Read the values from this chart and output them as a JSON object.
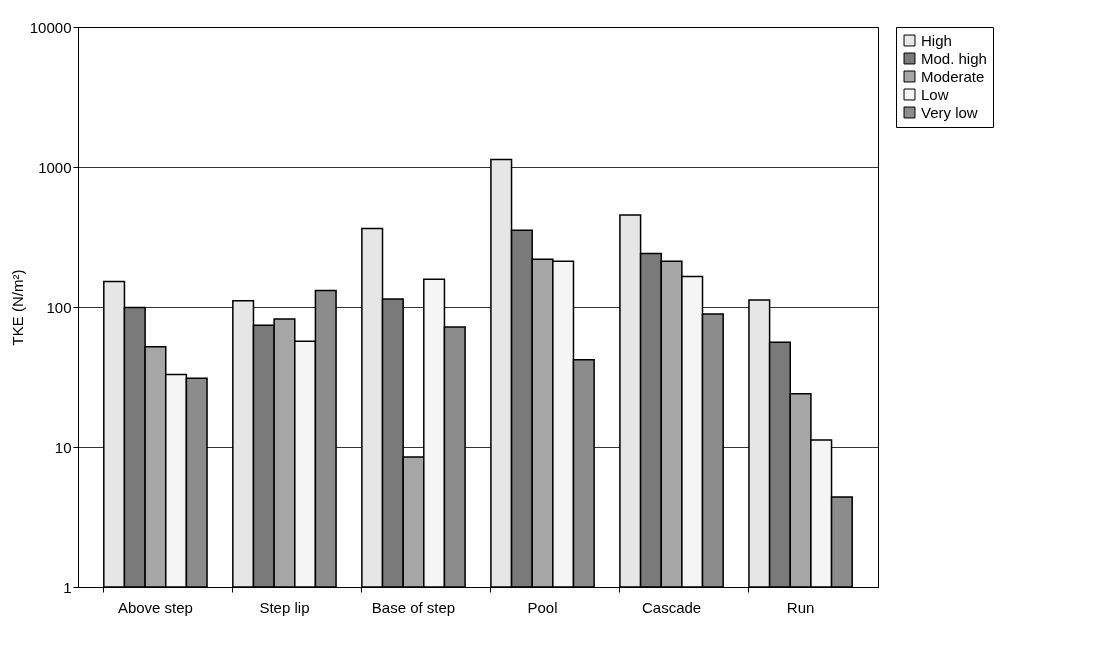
{
  "chart_data": {
    "type": "bar",
    "ylabel": "TKE (N/m²)",
    "categories": [
      "Above step",
      "Step lip",
      "Base of step",
      "Pool",
      "Cascade",
      "Run"
    ],
    "series": [
      {
        "name": "High",
        "color": "#e6e6e6",
        "values": [
          152,
          111,
          363,
          1130,
          455,
          112
        ]
      },
      {
        "name": "Mod. high",
        "color": "#7a7a7a",
        "values": [
          99,
          74,
          114,
          354,
          241,
          56
        ]
      },
      {
        "name": "Moderate",
        "color": "#a6a6a6",
        "values": [
          52,
          82,
          8.5,
          219,
          212,
          24
        ]
      },
      {
        "name": "Low",
        "color": "#f5f5f5",
        "values": [
          33,
          57,
          158,
          212,
          165,
          11.2
        ]
      },
      {
        "name": "Very low",
        "color": "#8c8c8c",
        "values": [
          31,
          131,
          72,
          42,
          89,
          4.4
        ]
      }
    ],
    "log": "y",
    "ylim": [
      1,
      10000
    ],
    "yticks": [
      1,
      10,
      100,
      1000,
      10000
    ],
    "grid": "y",
    "legend": "right"
  }
}
